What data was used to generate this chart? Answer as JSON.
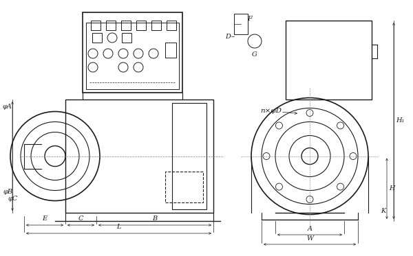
{
  "bg_color": "#ffffff",
  "line_color": "#1a1a1a",
  "fig_width": 6.0,
  "fig_height": 3.73,
  "dpi": 100,
  "labels": {
    "phi_A": "φA",
    "phi_B": "φB",
    "phi_C": "φC",
    "E_lbl": "E",
    "C_lbl": "C",
    "B_lbl": "B",
    "L_lbl": "L",
    "n_phi_D": "n×φD",
    "F_lbl": "F",
    "D_lbl": "D",
    "G_lbl": "G",
    "H1_lbl": "H₁",
    "H_lbl": "H",
    "K_lbl": "K",
    "A_lbl": "A",
    "W_lbl": "W"
  }
}
